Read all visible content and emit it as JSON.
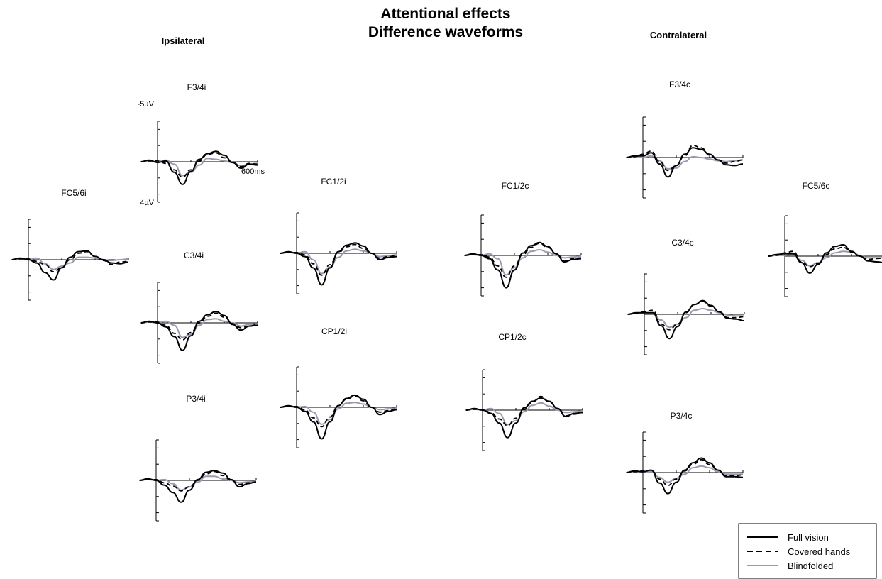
{
  "figure": {
    "title_line1": "Attentional effects",
    "title_line2": "Difference waveforms",
    "left_heading": "Ipsilateral",
    "right_heading": "Contralateral"
  },
  "scale": {
    "y_top": "-5µV",
    "y_bottom": "4µV",
    "x_end": "600ms"
  },
  "legend": [
    {
      "label": "Full vision",
      "style": "solid",
      "color": "#000000"
    },
    {
      "label": "Covered hands",
      "style": "dashed",
      "color": "#000000"
    },
    {
      "label": "Blindfolded",
      "style": "solid",
      "color": "#9a9aae"
    }
  ],
  "chart_data": {
    "type": "line",
    "y_axis_inverted": true,
    "y_unit": "µV",
    "x_unit": "ms",
    "ylim": [
      -5,
      4
    ],
    "x_range": [
      -100,
      600
    ],
    "series": [
      {
        "name": "Full vision",
        "color": "#000000",
        "style": "solid"
      },
      {
        "name": "Covered hands",
        "color": "#000000",
        "style": "dashed"
      },
      {
        "name": "Blindfolded",
        "color": "#9a9aae",
        "style": "solid"
      }
    ],
    "panels": [
      {
        "id": "F3/4i",
        "side": "Ipsilateral",
        "x": [
          -100,
          -50,
          0,
          50,
          100,
          150,
          200,
          250,
          300,
          350,
          400,
          450,
          500,
          550,
          600
        ],
        "full": [
          0,
          0.2,
          -0.1,
          0.1,
          -1.3,
          -2.8,
          -1.2,
          0.3,
          1.0,
          1.3,
          0.8,
          -0.1,
          -0.8,
          -0.3,
          -0.4
        ],
        "covered": [
          0,
          0.1,
          0.1,
          -0.2,
          -1.0,
          -1.9,
          -1.0,
          0.1,
          0.9,
          1.1,
          0.5,
          -0.1,
          -0.6,
          -0.2,
          -0.3
        ],
        "blind": [
          0,
          0.1,
          0.0,
          0.2,
          -0.3,
          -1.7,
          -1.3,
          -0.4,
          0.4,
          0.3,
          0.1,
          -0.1,
          -0.5,
          -0.3,
          -0.2
        ]
      },
      {
        "id": "FC5/6i",
        "side": "Ipsilateral",
        "x": [
          -100,
          -50,
          0,
          50,
          100,
          150,
          200,
          250,
          300,
          350,
          400,
          450,
          500,
          550,
          600
        ],
        "full": [
          0,
          0.2,
          0.0,
          -0.4,
          -1.6,
          -2.5,
          -1.0,
          0.3,
          1.0,
          1.1,
          0.4,
          0.0,
          -0.4,
          -0.5,
          -0.3
        ],
        "covered": [
          0,
          0.1,
          0.1,
          -0.2,
          -0.6,
          -1.5,
          -1.0,
          0.0,
          0.8,
          1.0,
          0.4,
          -0.1,
          -0.6,
          -0.3,
          -0.2
        ],
        "blind": [
          0,
          0.1,
          0.0,
          0.2,
          -0.5,
          -1.2,
          -0.8,
          -0.4,
          0.3,
          0.3,
          0.2,
          0.0,
          -0.1,
          0.0,
          0.1
        ]
      },
      {
        "id": "C3/4i",
        "side": "Ipsilateral",
        "x": [
          -100,
          -50,
          0,
          50,
          100,
          150,
          200,
          250,
          300,
          350,
          400,
          450,
          500,
          550,
          600
        ],
        "full": [
          0,
          0.2,
          0.0,
          -0.5,
          -1.7,
          -3.4,
          -1.6,
          0.2,
          1.0,
          1.4,
          0.9,
          -0.2,
          -0.9,
          -0.4,
          -0.3
        ],
        "covered": [
          0,
          0.1,
          0.1,
          -0.3,
          -1.3,
          -2.1,
          -1.2,
          0.0,
          0.8,
          1.2,
          0.7,
          -0.1,
          -0.6,
          -0.4,
          -0.2
        ],
        "blind": [
          0,
          0.1,
          0.0,
          0.2,
          -0.3,
          -1.8,
          -1.4,
          -0.3,
          0.4,
          0.5,
          0.2,
          0.0,
          -0.4,
          -0.2,
          -0.1
        ]
      },
      {
        "id": "P3/4i",
        "side": "Ipsilateral",
        "x": [
          -100,
          -50,
          0,
          50,
          100,
          150,
          200,
          250,
          300,
          350,
          400,
          450,
          500,
          550,
          600
        ],
        "full": [
          0,
          0.2,
          0.0,
          -0.6,
          -1.5,
          -2.7,
          -1.2,
          0.1,
          1.0,
          1.2,
          0.9,
          0.1,
          -0.8,
          -0.4,
          -0.2
        ],
        "covered": [
          0,
          0.1,
          0.1,
          -0.3,
          -0.7,
          -1.3,
          -0.8,
          0.0,
          0.8,
          1.1,
          0.6,
          0.0,
          -0.5,
          -0.3,
          -0.2
        ],
        "blind": [
          0,
          0.1,
          0.0,
          0.1,
          -0.4,
          -1.2,
          -0.8,
          -0.2,
          0.5,
          0.5,
          0.2,
          0.0,
          -0.3,
          -0.2,
          -0.1
        ]
      },
      {
        "id": "FC1/2i",
        "side": "Ipsilateral",
        "x": [
          -100,
          -50,
          0,
          50,
          100,
          150,
          200,
          250,
          300,
          350,
          400,
          450,
          500,
          550,
          600
        ],
        "full": [
          0,
          0.2,
          0.0,
          -0.4,
          -1.8,
          -3.9,
          -1.8,
          0.2,
          1.0,
          1.3,
          0.9,
          0.0,
          -0.8,
          -0.5,
          -0.4
        ],
        "covered": [
          0,
          0.1,
          0.1,
          -0.2,
          -1.3,
          -2.7,
          -1.4,
          0.1,
          0.8,
          1.1,
          0.6,
          0.0,
          -0.6,
          -0.4,
          -0.3
        ],
        "blind": [
          0,
          0.1,
          0.0,
          0.2,
          -0.8,
          -2.5,
          -1.7,
          -0.5,
          0.3,
          0.5,
          0.3,
          0.0,
          -0.4,
          -0.3,
          -0.2
        ]
      },
      {
        "id": "CP1/2i",
        "side": "Ipsilateral",
        "x": [
          -100,
          -50,
          0,
          50,
          100,
          150,
          200,
          250,
          300,
          350,
          400,
          450,
          500,
          550,
          600
        ],
        "full": [
          0,
          0.2,
          0.0,
          -0.5,
          -1.8,
          -3.9,
          -1.8,
          0.2,
          1.1,
          1.5,
          1.0,
          0.0,
          -0.9,
          -0.5,
          -0.3
        ],
        "covered": [
          0,
          0.1,
          0.1,
          -0.3,
          -1.3,
          -2.4,
          -1.2,
          0.2,
          1.0,
          1.4,
          0.8,
          0.0,
          -0.6,
          -0.4,
          -0.2
        ],
        "blind": [
          0,
          0.1,
          0.0,
          0.1,
          -0.6,
          -2.1,
          -1.5,
          -0.2,
          0.5,
          0.6,
          0.4,
          0.0,
          -0.3,
          -0.2,
          -0.1
        ]
      },
      {
        "id": "FC1/2c",
        "side": "Contralateral",
        "x": [
          -100,
          -50,
          0,
          50,
          100,
          150,
          200,
          250,
          300,
          350,
          400,
          450,
          500,
          550,
          600
        ],
        "full": [
          0,
          0.2,
          0.0,
          -0.4,
          -1.8,
          -4.0,
          -1.8,
          0.3,
          1.2,
          1.6,
          1.1,
          0.2,
          -0.8,
          -0.5,
          -0.4
        ],
        "covered": [
          0,
          0.1,
          0.1,
          -0.2,
          -1.3,
          -2.7,
          -1.3,
          0.1,
          1.0,
          1.5,
          1.0,
          0.2,
          -0.7,
          -0.4,
          -0.3
        ],
        "blind": [
          0,
          0.1,
          0.0,
          0.2,
          -0.4,
          -2.4,
          -1.5,
          -0.3,
          0.5,
          0.7,
          0.4,
          0.0,
          -0.3,
          -0.2,
          -0.1
        ]
      },
      {
        "id": "CP1/2c",
        "side": "Contralateral",
        "x": [
          -100,
          -50,
          0,
          50,
          100,
          150,
          200,
          250,
          300,
          350,
          400,
          450,
          500,
          550,
          600
        ],
        "full": [
          0,
          0.2,
          0.0,
          -0.4,
          -1.6,
          -3.4,
          -1.6,
          0.3,
          1.1,
          1.5,
          1.1,
          0.2,
          -0.8,
          -0.4,
          -0.3
        ],
        "covered": [
          0,
          0.1,
          0.1,
          -0.3,
          -1.1,
          -1.9,
          -1.0,
          0.1,
          1.0,
          1.7,
          1.0,
          0.2,
          -0.7,
          -0.5,
          -0.3
        ],
        "blind": [
          0,
          0.1,
          0.0,
          0.2,
          -0.4,
          -1.8,
          -1.3,
          -0.2,
          0.6,
          0.9,
          0.5,
          0.0,
          -0.3,
          -0.2,
          -0.1
        ]
      },
      {
        "id": "F3/4c",
        "side": "Contralateral",
        "x": [
          -100,
          -50,
          0,
          50,
          100,
          150,
          200,
          250,
          300,
          350,
          400,
          450,
          500,
          550,
          600
        ],
        "full": [
          0,
          0.2,
          0.2,
          0.6,
          -0.8,
          -2.4,
          -1.0,
          0.4,
          1.2,
          1.0,
          0.4,
          -0.3,
          -0.9,
          -1.0,
          -0.8
        ],
        "covered": [
          0,
          0.1,
          0.4,
          0.8,
          -0.5,
          -1.6,
          -1.0,
          0.2,
          1.5,
          1.2,
          0.3,
          -0.3,
          -0.7,
          -0.5,
          -0.3
        ],
        "blind": [
          0,
          0.1,
          0.0,
          0.2,
          -0.4,
          -1.4,
          -1.3,
          -0.5,
          0.1,
          0.0,
          -0.2,
          -0.4,
          -0.5,
          -0.4,
          -0.3
        ]
      },
      {
        "id": "FC5/6c",
        "side": "Contralateral",
        "x": [
          -100,
          -50,
          0,
          50,
          100,
          150,
          200,
          250,
          300,
          350,
          400,
          450,
          500,
          550,
          600
        ],
        "full": [
          0,
          0.2,
          0.3,
          0.3,
          -0.8,
          -2.1,
          -1.0,
          0.4,
          1.2,
          1.4,
          0.6,
          0.0,
          -0.6,
          -0.7,
          -0.8
        ],
        "covered": [
          0,
          0.1,
          0.4,
          0.6,
          -0.7,
          -1.3,
          -0.9,
          0.2,
          0.9,
          1.1,
          0.5,
          0.0,
          -0.4,
          -0.3,
          -0.2
        ],
        "blind": [
          0,
          0.1,
          0.1,
          0.2,
          -0.5,
          -1.2,
          -0.8,
          -0.2,
          0.4,
          0.6,
          0.5,
          0.1,
          -0.2,
          -0.2,
          -0.2
        ]
      },
      {
        "id": "C3/4c",
        "side": "Contralateral",
        "x": [
          -100,
          -50,
          0,
          50,
          100,
          150,
          200,
          250,
          300,
          350,
          400,
          450,
          500,
          550,
          600
        ],
        "full": [
          0,
          0.2,
          0.2,
          0.2,
          -1.4,
          -3.0,
          -1.5,
          0.3,
          1.2,
          1.7,
          1.1,
          0.3,
          -0.5,
          -0.6,
          -0.8
        ],
        "covered": [
          0,
          0.1,
          0.3,
          0.5,
          -1.2,
          -1.9,
          -1.2,
          0.2,
          1.2,
          1.6,
          1.0,
          0.3,
          -0.4,
          -0.4,
          -0.3
        ],
        "blind": [
          0,
          0.1,
          0.1,
          0.2,
          -0.7,
          -1.6,
          -1.2,
          -0.4,
          0.5,
          0.7,
          0.5,
          0.2,
          -0.1,
          -0.2,
          -0.2
        ]
      },
      {
        "id": "P3/4c",
        "side": "Contralateral",
        "x": [
          -100,
          -50,
          0,
          50,
          100,
          150,
          200,
          250,
          300,
          350,
          400,
          450,
          500,
          550,
          600
        ],
        "full": [
          0,
          0.2,
          0.1,
          0.3,
          -1.3,
          -2.6,
          -1.2,
          0.3,
          1.2,
          1.8,
          1.2,
          0.3,
          -0.5,
          -0.5,
          -0.6
        ],
        "covered": [
          0,
          0.1,
          0.2,
          0.3,
          -0.8,
          -1.6,
          -0.8,
          0.2,
          1.0,
          1.6,
          1.0,
          0.3,
          -0.4,
          -0.4,
          -0.3
        ],
        "blind": [
          0,
          0.1,
          0.0,
          0.1,
          -0.6,
          -1.2,
          -0.7,
          -0.2,
          0.6,
          0.8,
          0.6,
          0.1,
          -0.2,
          -0.2,
          -0.2
        ]
      }
    ]
  }
}
